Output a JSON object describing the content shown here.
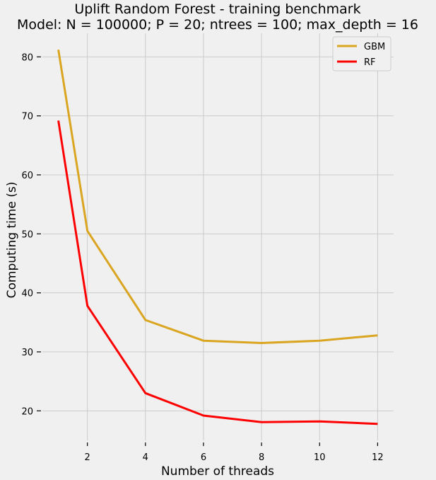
{
  "chart_data": {
    "type": "line",
    "title": "Uplift Random Forest - training benchmark",
    "subtitle": "Model: N = 100000; P = 20; ntrees = 100;  max_depth = 16",
    "xlabel": "Number of threads",
    "ylabel": "Computing time (s)",
    "x": [
      1,
      2,
      4,
      6,
      8,
      10,
      12
    ],
    "xlim": [
      0.45,
      12.55
    ],
    "ylim": [
      15.0,
      84.0
    ],
    "xticks": [
      2,
      4,
      6,
      8,
      10,
      12
    ],
    "yticks": [
      20,
      30,
      40,
      50,
      60,
      70,
      80
    ],
    "grid": true,
    "legend_position": "top-right",
    "series": [
      {
        "name": "GBM",
        "color": "#daa520",
        "values": [
          81.2,
          50.5,
          35.4,
          31.9,
          31.5,
          31.9,
          32.8
        ]
      },
      {
        "name": "RF",
        "color": "#ff0000",
        "values": [
          69.2,
          37.8,
          23.0,
          19.2,
          18.1,
          18.2,
          17.8
        ]
      }
    ]
  }
}
